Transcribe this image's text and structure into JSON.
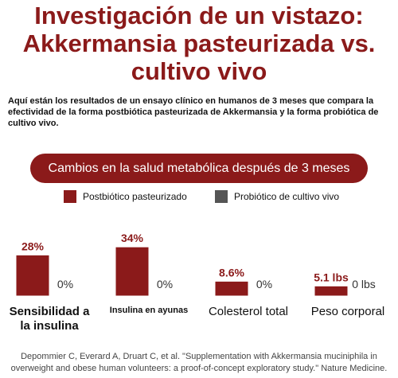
{
  "chart_data": {
    "type": "bar",
    "title": "Investigación de un vistazo: Akkermansia pasteurizada vs. cultivo vivo",
    "subtitle": "Aquí están los resultados de un ensayo clínico en humanos de 3 meses que compara la efectividad de la forma postbiótica pasteurizada de Akkermansia y la forma probiótica de cultivo vivo.",
    "chart_title": "Cambios en la salud metabólica después de 3 meses",
    "categories": [
      "Sensibilidad a la insulina",
      "Insulina en ayunas",
      "Colesterol total",
      "Peso corporal"
    ],
    "series": [
      {
        "name": "Postbiótico pasteurizado",
        "color": "#8b1a1a",
        "values": [
          28,
          34,
          8.6,
          5.1
        ],
        "value_labels": [
          "28%",
          "34%",
          "8.6%",
          "5.1 lbs"
        ]
      },
      {
        "name": "Probiótico de cultivo vivo",
        "color": "#555555",
        "values": [
          0,
          0,
          0,
          0
        ],
        "value_labels": [
          "0%",
          "0%",
          "0%",
          "0 lbs"
        ]
      }
    ],
    "source": "Depommier C, Everard A, Druart C, et al. \"Supplementation with Akkermansia muciniphila in overweight and obese human volunteers: a proof-of-concept exploratory study.\" Nature Medicine."
  }
}
